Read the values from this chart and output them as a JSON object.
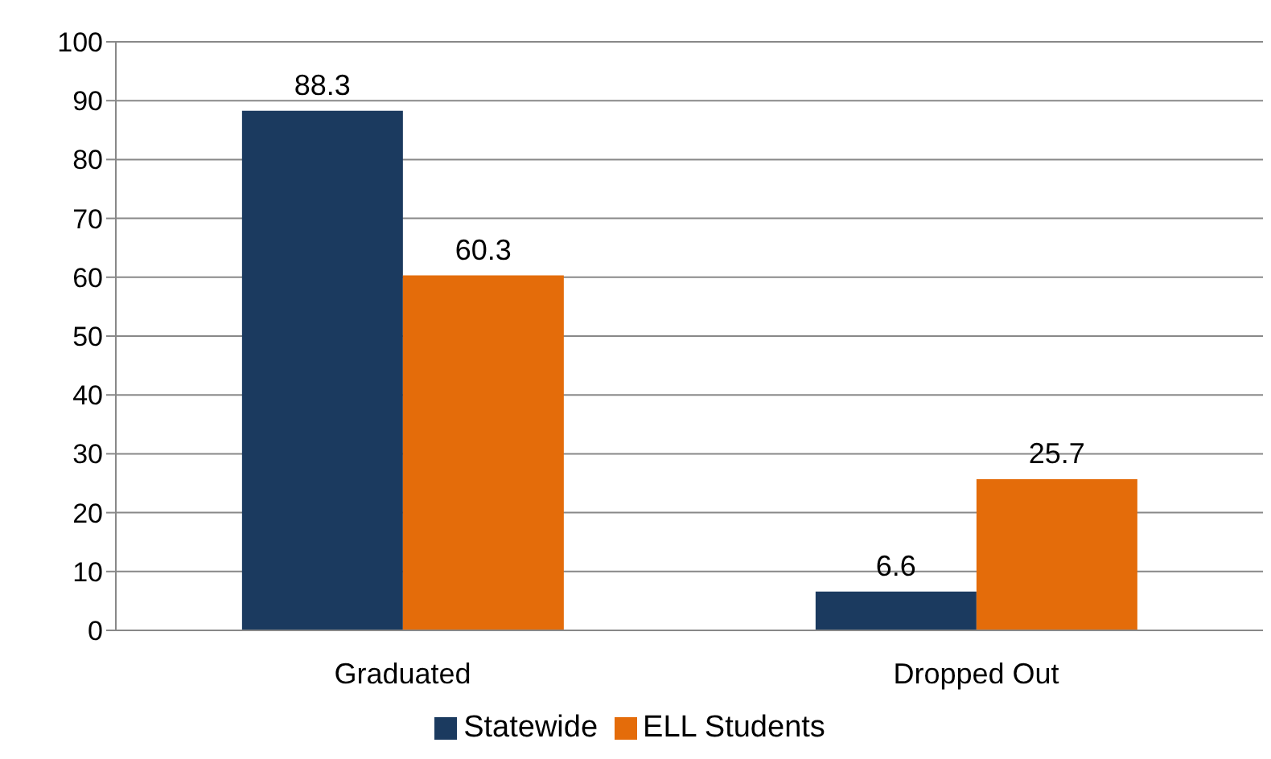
{
  "chart_data": {
    "type": "bar",
    "categories": [
      "Graduated",
      "Dropped Out"
    ],
    "series": [
      {
        "name": "Statewide",
        "color": "#1b3a5f",
        "values": [
          88.3,
          6.6
        ]
      },
      {
        "name": "ELL Students",
        "color": "#e46c0a",
        "values": [
          60.3,
          25.7
        ]
      }
    ],
    "ylim": [
      0,
      100
    ],
    "yticks": [
      0,
      10,
      20,
      30,
      40,
      50,
      60,
      70,
      80,
      90,
      100
    ],
    "grid": "y",
    "legend": "bottom",
    "data_labels": true
  }
}
